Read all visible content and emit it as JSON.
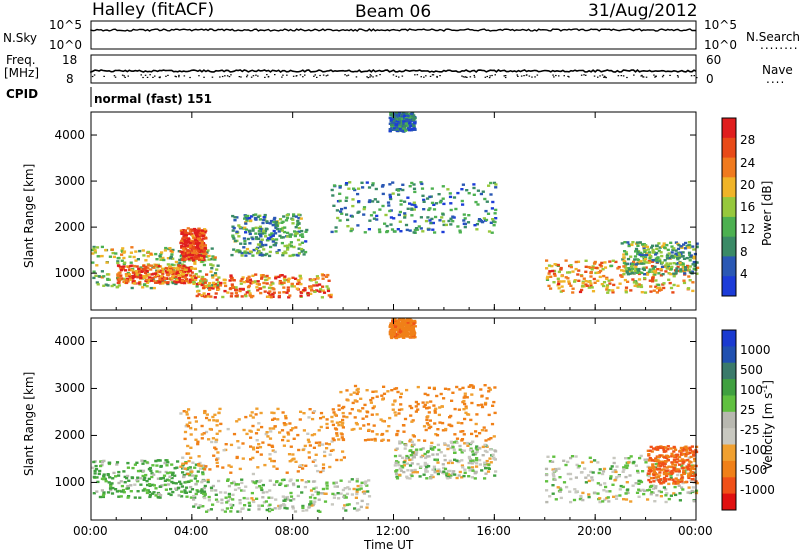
{
  "header": {
    "station": "Halley (fitACF)",
    "beam": "Beam 06",
    "date": "31/Aug/2012"
  },
  "colors": {
    "power": [
      "#1c3cd8",
      "#2a58b4",
      "#3a8a66",
      "#4cb050",
      "#96c83c",
      "#f0b428",
      "#f07a1e",
      "#e84a18",
      "#e01e1e"
    ],
    "velocity": [
      "#e01010",
      "#f05018",
      "#f08018",
      "#f0a030",
      "#c8c8c0",
      "#b8b8b0",
      "#60c040",
      "#40a040",
      "#3a7a6a",
      "#2050b0",
      "#1a3ad0"
    ]
  },
  "top_panels": {
    "nsky": {
      "label": "N.Sky",
      "ticks_left": [
        "10^5",
        "10^0"
      ],
      "ticks_right": [
        "10^5",
        "10^0"
      ],
      "right_label": "N.Search",
      "right_dots": "........"
    },
    "freq": {
      "label_top": "Freq.",
      "label_unit": "[MHz]",
      "ticks_left": [
        "18",
        "8"
      ],
      "ticks_right": [
        "60",
        "0"
      ],
      "right_label": "Nave",
      "right_dots": "...."
    },
    "cpid": {
      "label": "CPID",
      "text": "normal (fast) 151"
    }
  },
  "chart_data": [
    {
      "type": "heatmap",
      "title": "",
      "xlabel": "Time UT",
      "ylabel": "Slant Range [km]",
      "x_ticks": [
        "00:00",
        "04:00",
        "08:00",
        "12:00",
        "16:00",
        "20:00",
        "00:00"
      ],
      "y_ticks": [
        1000,
        2000,
        3000,
        4000
      ],
      "xlim": [
        0,
        24
      ],
      "ylim": [
        200,
        4500
      ],
      "colorbar": {
        "label": "Power [dB]",
        "ticks": [
          "28",
          "24",
          "20",
          "16",
          "12",
          "8",
          "4"
        ],
        "range": [
          0,
          30
        ]
      },
      "regions": [
        {
          "t": [
            0.0,
            5.0
          ],
          "r": [
            700,
            1600
          ],
          "value": 14
        },
        {
          "t": [
            1.0,
            4.0
          ],
          "r": [
            800,
            1200
          ],
          "value": 24
        },
        {
          "t": [
            3.5,
            4.5
          ],
          "r": [
            1300,
            2000
          ],
          "value": 26
        },
        {
          "t": [
            4.0,
            9.5
          ],
          "r": [
            500,
            1000
          ],
          "value": 22
        },
        {
          "t": [
            5.5,
            8.5
          ],
          "r": [
            1400,
            2300
          ],
          "value": 10
        },
        {
          "t": [
            9.5,
            16.0
          ],
          "r": [
            1900,
            3000
          ],
          "value": 8
        },
        {
          "t": [
            11.8,
            12.8
          ],
          "r": [
            4100,
            4500
          ],
          "value": 6
        },
        {
          "t": [
            18.0,
            24.0
          ],
          "r": [
            600,
            1300
          ],
          "value": 20
        },
        {
          "t": [
            21.0,
            24.0
          ],
          "r": [
            1000,
            1700
          ],
          "value": 12
        }
      ]
    },
    {
      "type": "heatmap",
      "title": "",
      "xlabel": "Time UT",
      "ylabel": "Slant Range [km]",
      "x_ticks": [
        "00:00",
        "04:00",
        "08:00",
        "12:00",
        "16:00",
        "20:00",
        "00:00"
      ],
      "y_ticks": [
        1000,
        2000,
        3000,
        4000
      ],
      "xlim": [
        0,
        24
      ],
      "ylim": [
        200,
        4500
      ],
      "colorbar": {
        "label": "Velocity [m s^-1]",
        "ticks": [
          "1000",
          "500",
          "100",
          "25",
          "-25",
          "-100",
          "-500",
          "-1000"
        ],
        "range": [
          -1000,
          1000
        ]
      },
      "regions": [
        {
          "t": [
            0.0,
            4.5
          ],
          "r": [
            700,
            1500
          ],
          "value": 100
        },
        {
          "t": [
            3.5,
            10.0
          ],
          "r": [
            1200,
            2600
          ],
          "value": -200
        },
        {
          "t": [
            4.0,
            11.0
          ],
          "r": [
            400,
            1100
          ],
          "value": 0
        },
        {
          "t": [
            9.5,
            16.0
          ],
          "r": [
            1900,
            3100
          ],
          "value": -300
        },
        {
          "t": [
            11.8,
            12.8
          ],
          "r": [
            4100,
            4500
          ],
          "value": -400
        },
        {
          "t": [
            12.0,
            16.0
          ],
          "r": [
            1100,
            1900
          ],
          "value": 0
        },
        {
          "t": [
            18.0,
            24.0
          ],
          "r": [
            600,
            1600
          ],
          "value": 0
        },
        {
          "t": [
            22.0,
            24.0
          ],
          "r": [
            1000,
            1800
          ],
          "value": -500
        }
      ]
    }
  ]
}
